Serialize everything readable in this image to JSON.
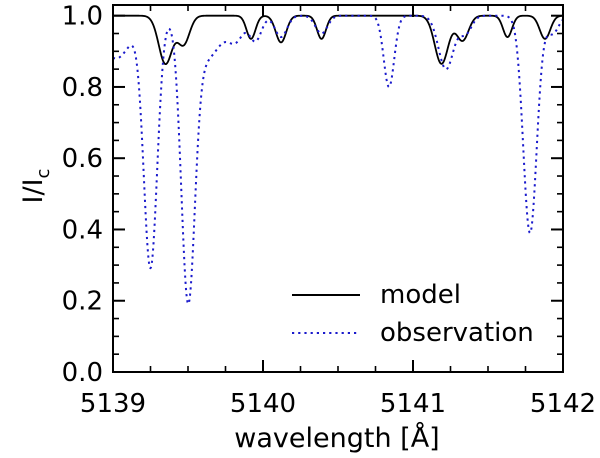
{
  "chart_data": {
    "type": "line",
    "title": "",
    "xlabel": "wavelength [Å]",
    "ylabel": "I/I",
    "ylabel_subscript": "c",
    "xlim": [
      5139.0,
      5142.0
    ],
    "ylim": [
      0.0,
      1.03
    ],
    "xticks": [
      5139,
      5140,
      5141,
      5142
    ],
    "xtick_labels": [
      "5139",
      "5140",
      "5141",
      "5142"
    ],
    "yticks": [
      0.0,
      0.2,
      0.4,
      0.6,
      0.8,
      1.0
    ],
    "ytick_labels": [
      "0.0",
      "0.2",
      "0.4",
      "0.6",
      "0.8",
      "1.0"
    ],
    "grid": false,
    "legend_position": "bottom-right",
    "series": [
      {
        "name": "model",
        "style": "solid",
        "color": "#000000",
        "continuum": 1.0,
        "lines": [
          {
            "center": 5139.35,
            "depth": 0.135,
            "width": 0.045
          },
          {
            "center": 5139.47,
            "depth": 0.08,
            "width": 0.04
          },
          {
            "center": 5139.92,
            "depth": 0.065,
            "width": 0.03
          },
          {
            "center": 5140.12,
            "depth": 0.075,
            "width": 0.035
          },
          {
            "center": 5140.39,
            "depth": 0.065,
            "width": 0.03
          },
          {
            "center": 5141.19,
            "depth": 0.135,
            "width": 0.045
          },
          {
            "center": 5141.33,
            "depth": 0.07,
            "width": 0.04
          },
          {
            "center": 5141.63,
            "depth": 0.06,
            "width": 0.03
          },
          {
            "center": 5141.88,
            "depth": 0.065,
            "width": 0.035
          }
        ]
      },
      {
        "name": "observation",
        "style": "dotted",
        "color": "#1a1acc",
        "continuum": 1.0,
        "lines": [
          {
            "center": 5139.02,
            "depth": 0.12,
            "width": 0.1
          },
          {
            "center": 5139.25,
            "depth": 0.7,
            "width": 0.045
          },
          {
            "center": 5139.5,
            "depth": 0.75,
            "width": 0.045
          },
          {
            "center": 5139.62,
            "depth": 0.12,
            "width": 0.1
          },
          {
            "center": 5139.82,
            "depth": 0.06,
            "width": 0.05
          },
          {
            "center": 5139.95,
            "depth": 0.07,
            "width": 0.04
          },
          {
            "center": 5140.12,
            "depth": 0.06,
            "width": 0.04
          },
          {
            "center": 5140.39,
            "depth": 0.05,
            "width": 0.04
          },
          {
            "center": 5140.84,
            "depth": 0.2,
            "width": 0.035
          },
          {
            "center": 5141.22,
            "depth": 0.15,
            "width": 0.05
          },
          {
            "center": 5141.35,
            "depth": 0.05,
            "width": 0.04
          },
          {
            "center": 5141.78,
            "depth": 0.61,
            "width": 0.045
          },
          {
            "center": 5141.93,
            "depth": 0.05,
            "width": 0.04
          }
        ]
      }
    ]
  }
}
